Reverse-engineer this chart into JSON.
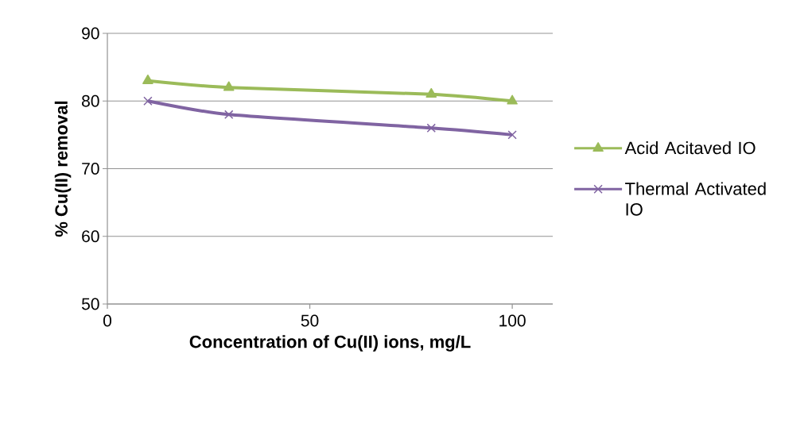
{
  "chart_data": {
    "type": "line",
    "xlabel": "Concentration of Cu(II) ions, mg/L",
    "ylabel": "% Cu(II) removal",
    "xlim": [
      0,
      110
    ],
    "xticks": [
      0,
      50,
      100
    ],
    "ylim": [
      50,
      90
    ],
    "yticks": [
      50,
      60,
      70,
      80,
      90
    ],
    "grid": "y",
    "legend": "right",
    "line_style": "solid",
    "series": [
      {
        "name": "Acid Acitaved IO",
        "color": "#9bbb59",
        "marker": "triangle",
        "x": [
          10,
          30,
          80,
          100
        ],
        "values": [
          83,
          82,
          81,
          80
        ]
      },
      {
        "name": "Thermal Activated IO",
        "color": "#8064a2",
        "marker": "cross",
        "x": [
          10,
          30,
          80,
          100
        ],
        "values": [
          80,
          78,
          76,
          75
        ]
      }
    ]
  }
}
